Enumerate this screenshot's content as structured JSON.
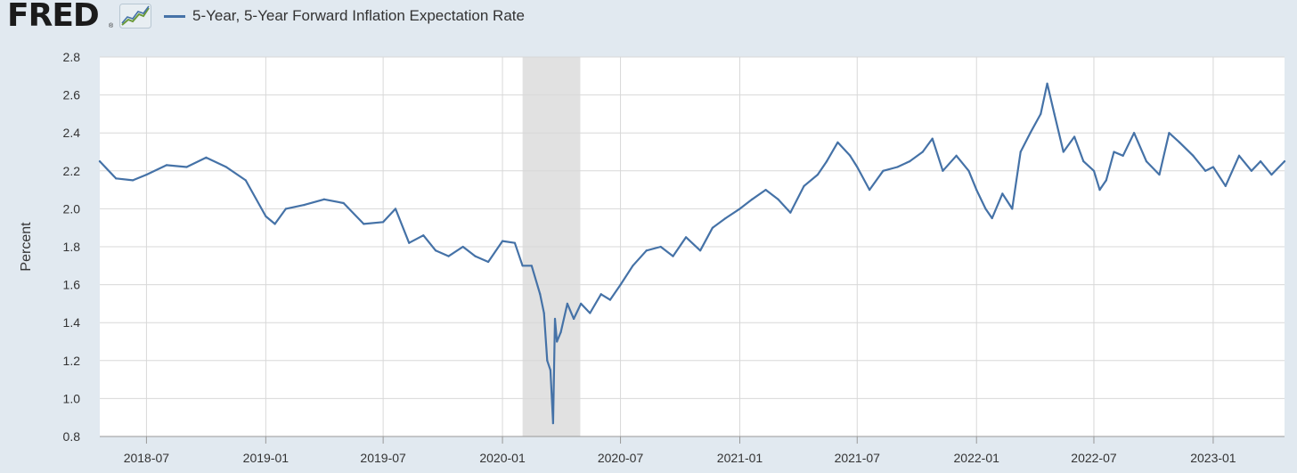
{
  "header": {
    "logo_text": "FRED",
    "logo_mark": "®"
  },
  "colors": {
    "series": "#4572a7",
    "grid": "#d8d8d8",
    "recession": "#e1e1e1",
    "page_bg": "#e1e9f0",
    "plot_bg": "#ffffff",
    "text": "#333333"
  },
  "chart_data": {
    "type": "line",
    "title": "",
    "xlabel": "",
    "ylabel": "Percent",
    "ylim": [
      0.8,
      2.8
    ],
    "y_ticks": [
      "2.8",
      "2.6",
      "2.4",
      "2.2",
      "2.0",
      "1.8",
      "1.6",
      "1.4",
      "1.2",
      "1.0",
      "0.8"
    ],
    "x_range": [
      "2018-04-20",
      "2023-04-21"
    ],
    "x_ticks": [
      "2018-07",
      "2019-01",
      "2019-07",
      "2020-01",
      "2020-07",
      "2021-01",
      "2021-07",
      "2022-01",
      "2022-07",
      "2023-01"
    ],
    "legend": "top-left",
    "grid": true,
    "recession_band": {
      "start": "2020-02-01",
      "end": "2020-04-30"
    },
    "series": [
      {
        "name": "5-Year, 5-Year Forward Inflation Expectation Rate",
        "x": [
          "2018-04-20",
          "2018-05-15",
          "2018-06-10",
          "2018-07-01",
          "2018-08-01",
          "2018-09-01",
          "2018-10-01",
          "2018-11-01",
          "2018-12-01",
          "2019-01-01",
          "2019-01-15",
          "2019-02-01",
          "2019-03-01",
          "2019-04-01",
          "2019-05-01",
          "2019-06-01",
          "2019-07-01",
          "2019-07-20",
          "2019-08-10",
          "2019-09-01",
          "2019-09-20",
          "2019-10-10",
          "2019-11-01",
          "2019-11-20",
          "2019-12-10",
          "2020-01-01",
          "2020-01-20",
          "2020-02-01",
          "2020-02-15",
          "2020-02-28",
          "2020-03-05",
          "2020-03-10",
          "2020-03-15",
          "2020-03-19",
          "2020-03-22",
          "2020-03-25",
          "2020-03-31",
          "2020-04-10",
          "2020-04-20",
          "2020-05-01",
          "2020-05-15",
          "2020-06-01",
          "2020-06-15",
          "2020-07-01",
          "2020-07-20",
          "2020-08-10",
          "2020-09-01",
          "2020-09-20",
          "2020-10-10",
          "2020-11-01",
          "2020-11-20",
          "2020-12-10",
          "2021-01-01",
          "2021-01-20",
          "2021-02-10",
          "2021-03-01",
          "2021-03-20",
          "2021-04-10",
          "2021-05-01",
          "2021-05-15",
          "2021-06-01",
          "2021-06-20",
          "2021-07-01",
          "2021-07-20",
          "2021-08-10",
          "2021-09-01",
          "2021-09-20",
          "2021-10-10",
          "2021-10-25",
          "2021-11-10",
          "2021-12-01",
          "2021-12-20",
          "2022-01-01",
          "2022-01-15",
          "2022-01-25",
          "2022-02-10",
          "2022-02-25",
          "2022-03-10",
          "2022-03-25",
          "2022-04-10",
          "2022-04-20",
          "2022-05-01",
          "2022-05-15",
          "2022-06-01",
          "2022-06-15",
          "2022-07-01",
          "2022-07-10",
          "2022-07-20",
          "2022-08-01",
          "2022-08-15",
          "2022-09-01",
          "2022-09-20",
          "2022-10-10",
          "2022-10-25",
          "2022-11-10",
          "2022-12-01",
          "2022-12-20",
          "2023-01-01",
          "2023-01-20",
          "2023-02-10",
          "2023-03-01",
          "2023-03-15",
          "2023-04-01",
          "2023-04-21"
        ],
        "values": [
          2.25,
          2.16,
          2.15,
          2.18,
          2.23,
          2.22,
          2.27,
          2.22,
          2.15,
          1.96,
          1.92,
          2.0,
          2.02,
          2.05,
          2.03,
          1.92,
          1.93,
          2.0,
          1.82,
          1.86,
          1.78,
          1.75,
          1.8,
          1.75,
          1.72,
          1.83,
          1.82,
          1.7,
          1.7,
          1.55,
          1.45,
          1.2,
          1.15,
          0.87,
          1.42,
          1.3,
          1.35,
          1.5,
          1.42,
          1.5,
          1.45,
          1.55,
          1.52,
          1.6,
          1.7,
          1.78,
          1.8,
          1.75,
          1.85,
          1.78,
          1.9,
          1.95,
          2.0,
          2.05,
          2.1,
          2.05,
          1.98,
          2.12,
          2.18,
          2.25,
          2.35,
          2.28,
          2.22,
          2.1,
          2.2,
          2.22,
          2.25,
          2.3,
          2.37,
          2.2,
          2.28,
          2.2,
          2.1,
          2.0,
          1.95,
          2.08,
          2.0,
          2.3,
          2.4,
          2.5,
          2.66,
          2.5,
          2.3,
          2.38,
          2.25,
          2.2,
          2.1,
          2.15,
          2.3,
          2.28,
          2.4,
          2.25,
          2.18,
          2.4,
          2.35,
          2.28,
          2.2,
          2.22,
          2.12,
          2.28,
          2.2,
          2.25,
          2.18,
          2.25
        ]
      }
    ]
  }
}
